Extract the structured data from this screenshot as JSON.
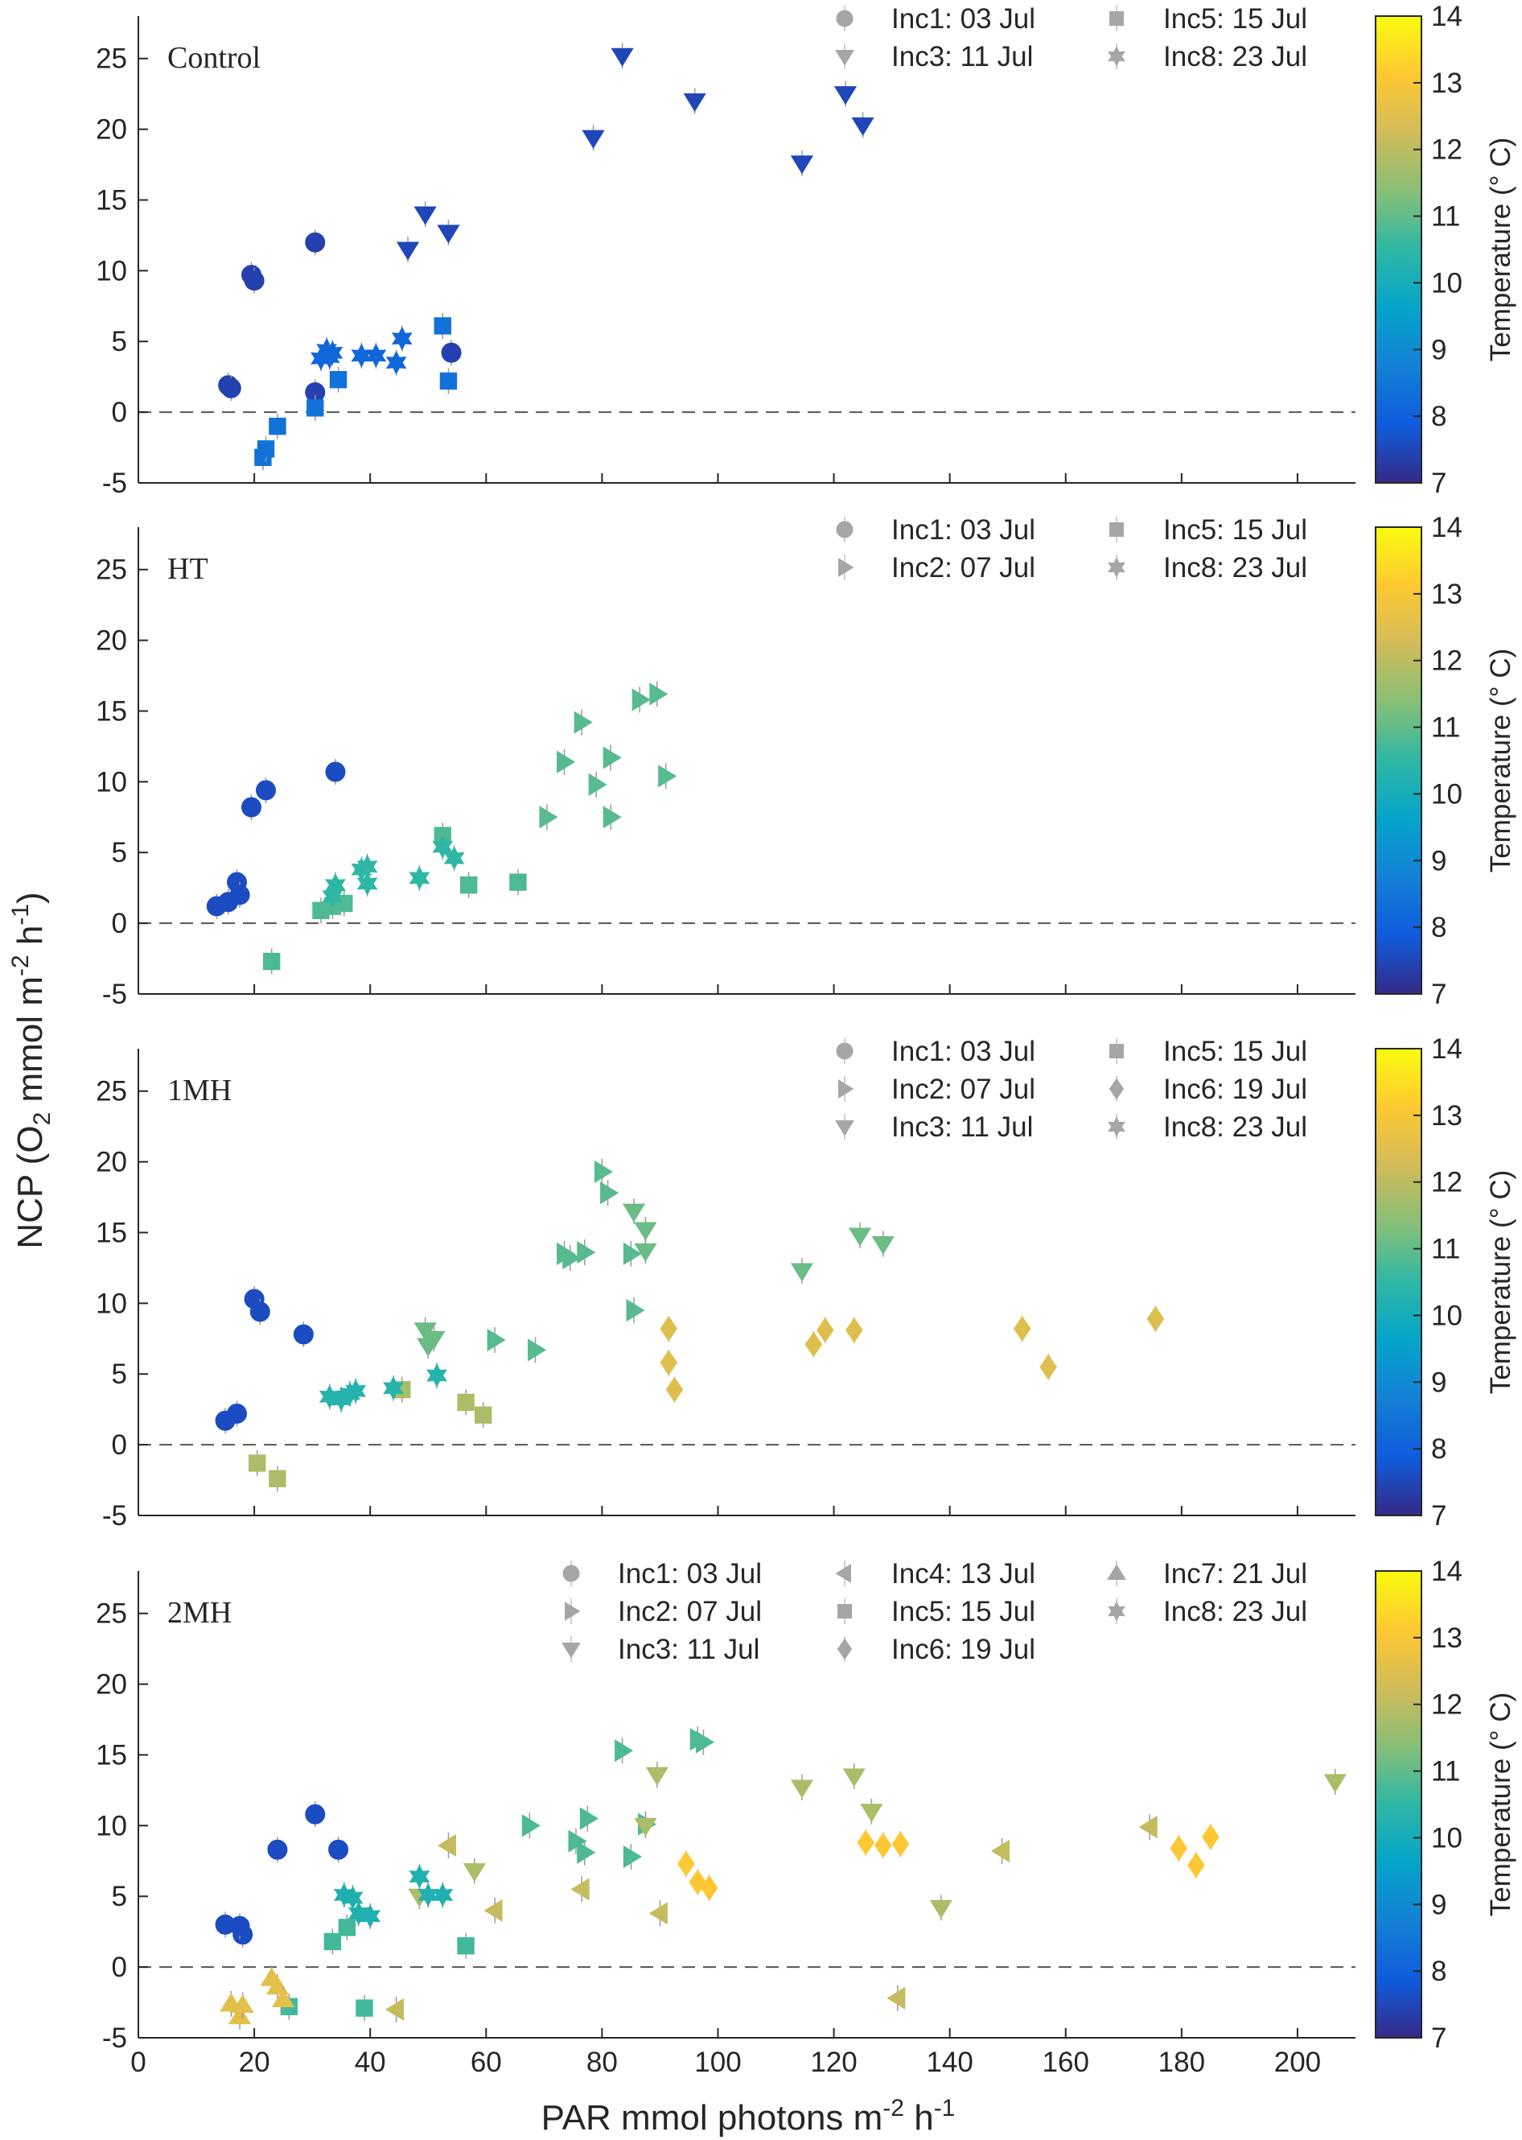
{
  "figure": {
    "ylabel_main": "NCP (O",
    "ylabel_sub2": "2",
    "ylabel_mid": " mmol m",
    "ylabel_sup1": "-2",
    "ylabel_mid2": " h",
    "ylabel_sup2": "-1",
    "ylabel_end": ")",
    "xlabel_main": "PAR mmol photons m",
    "xlabel_sup1": "-2",
    "xlabel_mid": " h",
    "xlabel_sup2": "-1"
  },
  "colors": {
    "colormap": [
      "#352a87",
      "#0f5cdd",
      "#1481d6",
      "#06a4ca",
      "#2eb7a4",
      "#87bf77",
      "#d1bb59",
      "#fec832",
      "#f9fb0e"
    ],
    "zero_line": "#555555",
    "legend_marker": "#a6a6a6",
    "axis": "#262626"
  },
  "chart_data": [
    {
      "type": "scatter",
      "title": "Control",
      "xlim": [
        0,
        210
      ],
      "ylim": [
        -5,
        28
      ],
      "yticks": [
        -5,
        0,
        5,
        10,
        15,
        20,
        25
      ],
      "zero_line": "dashed",
      "colorbar": {
        "label": "Temperature (° C)",
        "range": [
          7,
          14
        ],
        "ticks": [
          7,
          8,
          9,
          10,
          11,
          12,
          13,
          14
        ]
      },
      "legend": [
        {
          "marker": "circle",
          "label": "Inc1: 03 Jul"
        },
        {
          "marker": "triangle-down",
          "label": "Inc3: 11 Jul"
        },
        {
          "marker": "square",
          "label": "Inc5: 15 Jul"
        },
        {
          "marker": "hexagram",
          "label": "Inc8: 23 Jul"
        }
      ],
      "series": [
        {
          "marker": "circle",
          "temp": 7.4,
          "x": [
            15.5,
            16,
            19.5,
            20,
            30.5,
            30.5,
            54
          ],
          "y": [
            1.9,
            1.7,
            9.7,
            9.3,
            12,
            1.4,
            4.2
          ]
        },
        {
          "marker": "triangle-down",
          "temp": 7.5,
          "x": [
            78.5,
            83.5,
            96,
            114.5,
            122,
            125,
            46.5,
            49.5,
            53.5
          ],
          "y": [
            19.4,
            25.2,
            22,
            17.6,
            22.5,
            20.3,
            11.5,
            14,
            12.7
          ]
        },
        {
          "marker": "square",
          "temp": 8.4,
          "x": [
            21.5,
            22,
            24,
            30.5,
            34.5,
            52.5,
            53.5
          ],
          "y": [
            -3.2,
            -2.6,
            -1,
            0.3,
            2.3,
            6.1,
            2.2
          ]
        },
        {
          "marker": "hexagram",
          "temp": 8.1,
          "x": [
            31.5,
            32.5,
            33,
            33.5,
            38.5,
            41,
            44.5,
            45.5
          ],
          "y": [
            3.8,
            4.4,
            3.9,
            4.2,
            4,
            4,
            3.5,
            5.2
          ]
        }
      ]
    },
    {
      "type": "scatter",
      "title": "HT",
      "xlim": [
        0,
        210
      ],
      "ylim": [
        -5,
        28
      ],
      "yticks": [
        -5,
        0,
        5,
        10,
        15,
        20,
        25
      ],
      "zero_line": "dashed",
      "colorbar": {
        "label": "Temperature (° C)",
        "range": [
          7,
          14
        ],
        "ticks": [
          7,
          8,
          9,
          10,
          11,
          12,
          13,
          14
        ]
      },
      "legend": [
        {
          "marker": "circle",
          "label": "Inc1: 03 Jul"
        },
        {
          "marker": "triangle-right",
          "label": "Inc2: 07 Jul"
        },
        {
          "marker": "square",
          "label": "Inc5: 15 Jul"
        },
        {
          "marker": "hexagram",
          "label": "Inc8: 23 Jul"
        }
      ],
      "series": [
        {
          "marker": "circle",
          "temp": 7.6,
          "x": [
            13.5,
            15.5,
            17,
            17.5,
            19.5,
            22,
            34
          ],
          "y": [
            1.2,
            1.5,
            2.9,
            2,
            8.2,
            9.4,
            10.7
          ]
        },
        {
          "marker": "triangle-right",
          "temp": 10.9,
          "x": [
            70.5,
            73.5,
            76.5,
            79,
            81.5,
            81.5,
            86.5,
            89.5,
            91
          ],
          "y": [
            7.5,
            11.4,
            14.2,
            9.8,
            11.7,
            7.5,
            15.8,
            16.2,
            10.4
          ]
        },
        {
          "marker": "square",
          "temp": 10.8,
          "x": [
            23,
            31.5,
            33.5,
            35.5,
            52.5,
            57,
            65.5
          ],
          "y": [
            -2.7,
            0.9,
            1.2,
            1.4,
            6.2,
            2.7,
            2.9
          ]
        },
        {
          "marker": "hexagram",
          "temp": 10.5,
          "x": [
            33.5,
            34,
            38.5,
            39.5,
            39.5,
            48.5,
            52.5,
            54.5
          ],
          "y": [
            1.9,
            2.7,
            3.8,
            4,
            2.8,
            3.2,
            5.4,
            4.6
          ]
        }
      ]
    },
    {
      "type": "scatter",
      "title": "1MH",
      "xlim": [
        0,
        210
      ],
      "ylim": [
        -5,
        28
      ],
      "yticks": [
        -5,
        0,
        5,
        10,
        15,
        20,
        25
      ],
      "zero_line": "dashed",
      "colorbar": {
        "label": "Temperature (° C)",
        "range": [
          7,
          14
        ],
        "ticks": [
          7,
          8,
          9,
          10,
          11,
          12,
          13,
          14
        ]
      },
      "legend": [
        {
          "marker": "circle",
          "label": "Inc1: 03 Jul"
        },
        {
          "marker": "triangle-right",
          "label": "Inc2: 07 Jul"
        },
        {
          "marker": "triangle-down",
          "label": "Inc3: 11 Jul"
        },
        {
          "marker": "square",
          "label": "Inc5: 15 Jul"
        },
        {
          "marker": "diamond",
          "label": "Inc6: 19 Jul"
        },
        {
          "marker": "hexagram",
          "label": "Inc8: 23 Jul"
        }
      ],
      "series": [
        {
          "marker": "circle",
          "temp": 7.6,
          "x": [
            15,
            17,
            20,
            21,
            28.5
          ],
          "y": [
            1.7,
            2.2,
            10.3,
            9.4,
            7.8
          ]
        },
        {
          "marker": "triangle-right",
          "temp": 10.9,
          "x": [
            61.5,
            68.5,
            73.5,
            74.5,
            77,
            80,
            81,
            85,
            85.5
          ],
          "y": [
            7.4,
            6.7,
            13.5,
            13.2,
            13.6,
            19.3,
            17.8,
            13.5,
            9.5
          ]
        },
        {
          "marker": "triangle-down",
          "temp": 11.1,
          "x": [
            49.5,
            50,
            51,
            85.5,
            87.5,
            87.5,
            114.5,
            124.5,
            128.5
          ],
          "y": [
            8.1,
            7,
            7.5,
            16.5,
            15.2,
            13.7,
            12.3,
            14.8,
            14.2
          ]
        },
        {
          "marker": "square",
          "temp": 11.8,
          "x": [
            20.5,
            24,
            45.5,
            56.5,
            59.5
          ],
          "y": [
            -1.3,
            -2.4,
            3.9,
            3,
            2.1
          ]
        },
        {
          "marker": "diamond",
          "temp": 12.5,
          "x": [
            91.5,
            91.5,
            92.5,
            116.5,
            118.5,
            123.5,
            152.5,
            157,
            175.5
          ],
          "y": [
            8.2,
            5.8,
            3.9,
            7.1,
            8.1,
            8.1,
            8.2,
            5.5,
            8.9
          ]
        },
        {
          "marker": "hexagram",
          "temp": 10.3,
          "x": [
            33,
            35,
            36.5,
            37.5,
            44,
            51.5
          ],
          "y": [
            3.4,
            3.2,
            3.6,
            3.8,
            4,
            4.9
          ]
        }
      ]
    },
    {
      "type": "scatter",
      "title": "2MH",
      "xlim": [
        0,
        210
      ],
      "ylim": [
        -5,
        28
      ],
      "xticks": [
        0,
        20,
        40,
        60,
        80,
        100,
        120,
        140,
        160,
        180,
        200
      ],
      "yticks": [
        -5,
        0,
        5,
        10,
        15,
        20,
        25
      ],
      "zero_line": "dashed",
      "colorbar": {
        "label": "Temperature (° C)",
        "range": [
          7,
          14
        ],
        "ticks": [
          7,
          8,
          9,
          10,
          11,
          12,
          13,
          14
        ]
      },
      "legend": [
        {
          "marker": "circle",
          "label": "Inc1: 03 Jul"
        },
        {
          "marker": "triangle-right",
          "label": "Inc2: 07 Jul"
        },
        {
          "marker": "triangle-down",
          "label": "Inc3: 11 Jul"
        },
        {
          "marker": "triangle-left",
          "label": "Inc4: 13 Jul"
        },
        {
          "marker": "square",
          "label": "Inc5: 15 Jul"
        },
        {
          "marker": "diamond",
          "label": "Inc6: 19 Jul"
        },
        {
          "marker": "triangle-up",
          "label": "Inc7: 21 Jul"
        },
        {
          "marker": "hexagram",
          "label": "Inc8: 23 Jul"
        }
      ],
      "series": [
        {
          "marker": "circle",
          "temp": 7.6,
          "x": [
            15,
            18,
            17.5,
            24,
            30.5,
            34.5
          ],
          "y": [
            3,
            2.3,
            2.9,
            8.3,
            10.8,
            8.3
          ]
        },
        {
          "marker": "triangle-right",
          "temp": 10.8,
          "x": [
            67.5,
            75.5,
            77,
            77.5,
            83.5,
            85,
            87.5,
            96.5,
            97.5
          ],
          "y": [
            10,
            8.9,
            8.1,
            10.5,
            15.3,
            7.8,
            10.1,
            16.1,
            15.9
          ]
        },
        {
          "marker": "triangle-down",
          "temp": 11.8,
          "x": [
            48.5,
            58,
            87.5,
            89.5,
            114.5,
            123.5,
            126.5,
            138.5,
            206.5
          ],
          "y": [
            5,
            6.8,
            10,
            13.6,
            12.7,
            13.5,
            11,
            4.2,
            13.1
          ]
        },
        {
          "marker": "triangle-left",
          "temp": 12.1,
          "x": [
            53.5,
            61.5,
            76.5,
            90,
            131,
            149,
            174.5,
            44.5
          ],
          "y": [
            8.6,
            4,
            5.5,
            3.8,
            -2.2,
            8.2,
            9.9,
            -3
          ]
        },
        {
          "marker": "square",
          "temp": 10.7,
          "x": [
            26,
            33.5,
            36,
            39,
            56.5
          ],
          "y": [
            -2.8,
            1.8,
            2.8,
            -2.9,
            1.5
          ]
        },
        {
          "marker": "diamond",
          "temp": 13.1,
          "x": [
            94.5,
            96.5,
            98.5,
            125.5,
            128.5,
            131.5,
            179.5,
            182.5,
            185
          ],
          "y": [
            7.3,
            6,
            5.6,
            8.8,
            8.6,
            8.7,
            8.4,
            7.2,
            9.2
          ]
        },
        {
          "marker": "triangle-up",
          "temp": 12.6,
          "x": [
            16,
            17.5,
            18,
            23,
            24,
            25
          ],
          "y": [
            -2.6,
            -3.5,
            -2.7,
            -0.8,
            -1.4,
            -2.3
          ]
        },
        {
          "marker": "hexagram",
          "temp": 10.2,
          "x": [
            35.5,
            37,
            38,
            40,
            48.5,
            50,
            52.5
          ],
          "y": [
            5.1,
            4.9,
            3.8,
            3.6,
            6.4,
            5.1,
            5.1
          ]
        }
      ]
    }
  ]
}
